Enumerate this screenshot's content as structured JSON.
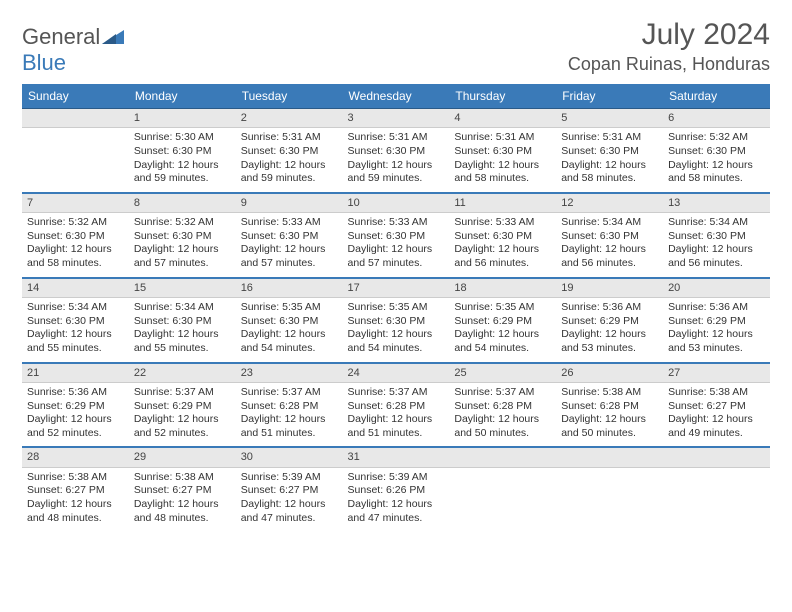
{
  "logo": {
    "word1": "General",
    "word2": "Blue"
  },
  "title": "July 2024",
  "location": "Copan Ruinas, Honduras",
  "colors": {
    "header_bg": "#3a7ab8",
    "header_text": "#ffffff",
    "daynum_bg": "#e8e8e8",
    "text": "#333333",
    "rule": "#3a7ab8"
  },
  "weekdays": [
    "Sunday",
    "Monday",
    "Tuesday",
    "Wednesday",
    "Thursday",
    "Friday",
    "Saturday"
  ],
  "weeks": [
    [
      null,
      {
        "num": "1",
        "sunrise": "5:30 AM",
        "sunset": "6:30 PM",
        "day_h": 12,
        "day_m": 59
      },
      {
        "num": "2",
        "sunrise": "5:31 AM",
        "sunset": "6:30 PM",
        "day_h": 12,
        "day_m": 59
      },
      {
        "num": "3",
        "sunrise": "5:31 AM",
        "sunset": "6:30 PM",
        "day_h": 12,
        "day_m": 59
      },
      {
        "num": "4",
        "sunrise": "5:31 AM",
        "sunset": "6:30 PM",
        "day_h": 12,
        "day_m": 58
      },
      {
        "num": "5",
        "sunrise": "5:31 AM",
        "sunset": "6:30 PM",
        "day_h": 12,
        "day_m": 58
      },
      {
        "num": "6",
        "sunrise": "5:32 AM",
        "sunset": "6:30 PM",
        "day_h": 12,
        "day_m": 58
      }
    ],
    [
      {
        "num": "7",
        "sunrise": "5:32 AM",
        "sunset": "6:30 PM",
        "day_h": 12,
        "day_m": 58
      },
      {
        "num": "8",
        "sunrise": "5:32 AM",
        "sunset": "6:30 PM",
        "day_h": 12,
        "day_m": 57
      },
      {
        "num": "9",
        "sunrise": "5:33 AM",
        "sunset": "6:30 PM",
        "day_h": 12,
        "day_m": 57
      },
      {
        "num": "10",
        "sunrise": "5:33 AM",
        "sunset": "6:30 PM",
        "day_h": 12,
        "day_m": 57
      },
      {
        "num": "11",
        "sunrise": "5:33 AM",
        "sunset": "6:30 PM",
        "day_h": 12,
        "day_m": 56
      },
      {
        "num": "12",
        "sunrise": "5:34 AM",
        "sunset": "6:30 PM",
        "day_h": 12,
        "day_m": 56
      },
      {
        "num": "13",
        "sunrise": "5:34 AM",
        "sunset": "6:30 PM",
        "day_h": 12,
        "day_m": 56
      }
    ],
    [
      {
        "num": "14",
        "sunrise": "5:34 AM",
        "sunset": "6:30 PM",
        "day_h": 12,
        "day_m": 55
      },
      {
        "num": "15",
        "sunrise": "5:34 AM",
        "sunset": "6:30 PM",
        "day_h": 12,
        "day_m": 55
      },
      {
        "num": "16",
        "sunrise": "5:35 AM",
        "sunset": "6:30 PM",
        "day_h": 12,
        "day_m": 54
      },
      {
        "num": "17",
        "sunrise": "5:35 AM",
        "sunset": "6:30 PM",
        "day_h": 12,
        "day_m": 54
      },
      {
        "num": "18",
        "sunrise": "5:35 AM",
        "sunset": "6:29 PM",
        "day_h": 12,
        "day_m": 54
      },
      {
        "num": "19",
        "sunrise": "5:36 AM",
        "sunset": "6:29 PM",
        "day_h": 12,
        "day_m": 53
      },
      {
        "num": "20",
        "sunrise": "5:36 AM",
        "sunset": "6:29 PM",
        "day_h": 12,
        "day_m": 53
      }
    ],
    [
      {
        "num": "21",
        "sunrise": "5:36 AM",
        "sunset": "6:29 PM",
        "day_h": 12,
        "day_m": 52
      },
      {
        "num": "22",
        "sunrise": "5:37 AM",
        "sunset": "6:29 PM",
        "day_h": 12,
        "day_m": 52
      },
      {
        "num": "23",
        "sunrise": "5:37 AM",
        "sunset": "6:28 PM",
        "day_h": 12,
        "day_m": 51
      },
      {
        "num": "24",
        "sunrise": "5:37 AM",
        "sunset": "6:28 PM",
        "day_h": 12,
        "day_m": 51
      },
      {
        "num": "25",
        "sunrise": "5:37 AM",
        "sunset": "6:28 PM",
        "day_h": 12,
        "day_m": 50
      },
      {
        "num": "26",
        "sunrise": "5:38 AM",
        "sunset": "6:28 PM",
        "day_h": 12,
        "day_m": 50
      },
      {
        "num": "27",
        "sunrise": "5:38 AM",
        "sunset": "6:27 PM",
        "day_h": 12,
        "day_m": 49
      }
    ],
    [
      {
        "num": "28",
        "sunrise": "5:38 AM",
        "sunset": "6:27 PM",
        "day_h": 12,
        "day_m": 48
      },
      {
        "num": "29",
        "sunrise": "5:38 AM",
        "sunset": "6:27 PM",
        "day_h": 12,
        "day_m": 48
      },
      {
        "num": "30",
        "sunrise": "5:39 AM",
        "sunset": "6:27 PM",
        "day_h": 12,
        "day_m": 47
      },
      {
        "num": "31",
        "sunrise": "5:39 AM",
        "sunset": "6:26 PM",
        "day_h": 12,
        "day_m": 47
      },
      null,
      null,
      null
    ]
  ]
}
